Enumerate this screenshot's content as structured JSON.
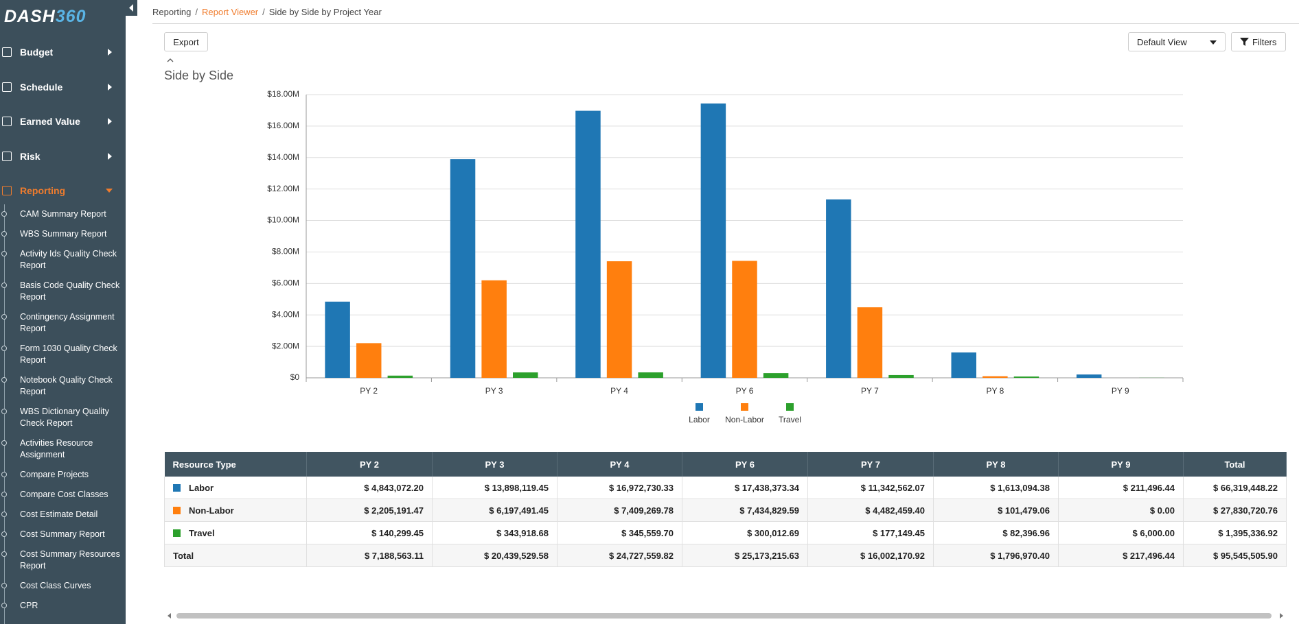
{
  "sidebar": {
    "logo": [
      "DASH",
      "360"
    ],
    "menu": [
      "Budget",
      "Schedule",
      "Earned Value",
      "Risk",
      "Reporting"
    ],
    "submenu": [
      "CAM Summary Report",
      "WBS Summary Report",
      "Activity Ids Quality Check Report",
      "Basis Code Quality Check Report",
      "Contingency Assignment Report",
      "Form 1030 Quality Check Report",
      "Notebook Quality Check Report",
      "WBS Dictionary Quality Check Report",
      "Activities Resource Assignment",
      "Compare Projects",
      "Compare Cost Classes",
      "Cost Estimate Detail",
      "Cost Summary Report",
      "Cost Summary Resources Report",
      "Cost Class Curves",
      "CPR"
    ]
  },
  "breadcrumb": {
    "items": [
      "Reporting",
      "Report Viewer",
      "Side by Side by Project Year"
    ],
    "separator": "/"
  },
  "buttons": {
    "export": "Export",
    "view": "Default View",
    "filters": "Filters"
  },
  "chart_data": {
    "type": "bar",
    "title": "Side by Side",
    "categories": [
      "PY 2",
      "PY 3",
      "PY 4",
      "PY 6",
      "PY 7",
      "PY 8",
      "PY 9"
    ],
    "series": [
      {
        "name": "Labor",
        "color": "#1f77b4",
        "values": [
          4843072.2,
          13898119.45,
          16972730.33,
          17438373.34,
          11342562.07,
          1613094.38,
          211496.44
        ]
      },
      {
        "name": "Non-Labor",
        "color": "#ff7f0e",
        "values": [
          2205191.47,
          6197491.45,
          7409269.78,
          7434829.59,
          4482459.4,
          101479.06,
          0.0
        ]
      },
      {
        "name": "Travel",
        "color": "#2ca02c",
        "values": [
          140299.45,
          343918.68,
          345559.7,
          300012.69,
          177149.45,
          82396.96,
          6000.0
        ]
      }
    ],
    "ylim": [
      0,
      18000000
    ],
    "yticks": [
      {
        "value": 0,
        "label": "$0"
      },
      {
        "value": 2000000,
        "label": "$2.00M"
      },
      {
        "value": 4000000,
        "label": "$4.00M"
      },
      {
        "value": 6000000,
        "label": "$6.00M"
      },
      {
        "value": 8000000,
        "label": "$8.00M"
      },
      {
        "value": 10000000,
        "label": "$10.00M"
      },
      {
        "value": 12000000,
        "label": "$12.00M"
      },
      {
        "value": 14000000,
        "label": "$14.00M"
      },
      {
        "value": 16000000,
        "label": "$16.00M"
      },
      {
        "value": 18000000,
        "label": "$18.00M"
      }
    ],
    "grid": true,
    "legend": "bottom"
  },
  "table": {
    "columns": [
      "Resource Type",
      "PY 2",
      "PY 3",
      "PY 4",
      "PY 6",
      "PY 7",
      "PY 8",
      "PY 9",
      "Total"
    ],
    "rows": [
      [
        "Labor",
        "$ 4,843,072.20",
        "$ 13,898,119.45",
        "$ 16,972,730.33",
        "$ 17,438,373.34",
        "$ 11,342,562.07",
        "$ 1,613,094.38",
        "$ 211,496.44",
        "$ 66,319,448.22"
      ],
      [
        "Non-Labor",
        "$ 2,205,191.47",
        "$ 6,197,491.45",
        "$ 7,409,269.78",
        "$ 7,434,829.59",
        "$ 4,482,459.40",
        "$ 101,479.06",
        "$ 0.00",
        "$ 27,830,720.76"
      ],
      [
        "Travel",
        "$ 140,299.45",
        "$ 343,918.68",
        "$ 345,559.70",
        "$ 300,012.69",
        "$ 177,149.45",
        "$ 82,396.96",
        "$ 6,000.00",
        "$ 1,395,336.92"
      ],
      [
        "Total",
        "$ 7,188,563.11",
        "$ 20,439,529.58",
        "$ 24,727,559.82",
        "$ 25,173,215.63",
        "$ 16,002,170.92",
        "$ 1,796,970.40",
        "$ 217,496.44",
        "$ 95,545,505.90"
      ]
    ]
  }
}
